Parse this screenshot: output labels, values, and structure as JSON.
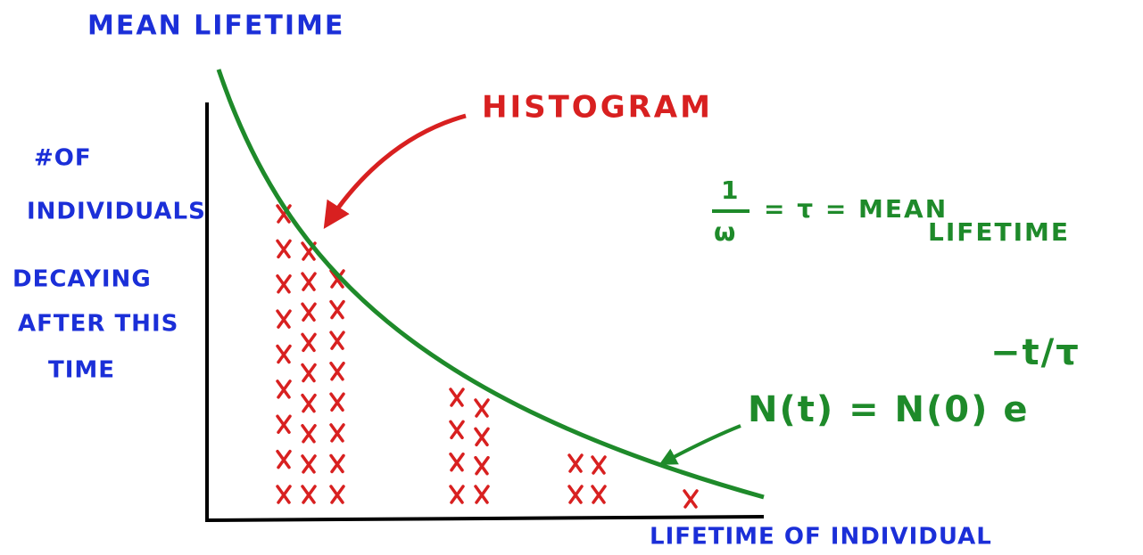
{
  "title": "MEAN LIFETIME",
  "y_axis_label": [
    "#OF",
    "INDIVIDUALS",
    "DECAYING",
    "AFTER THIS",
    "TIME"
  ],
  "x_axis_label": "LIFETIME OF INDIVIDUAL",
  "annotations": {
    "histogram": "HISTOGRAM",
    "mean_lifetime": {
      "numerator": "1",
      "denominator": "ω",
      "equals": "= τ = MEAN",
      "line2": "LIFETIME"
    },
    "formula": {
      "lhs": "N(t) = N(0) e",
      "exponent": "−t/τ"
    }
  }
}
